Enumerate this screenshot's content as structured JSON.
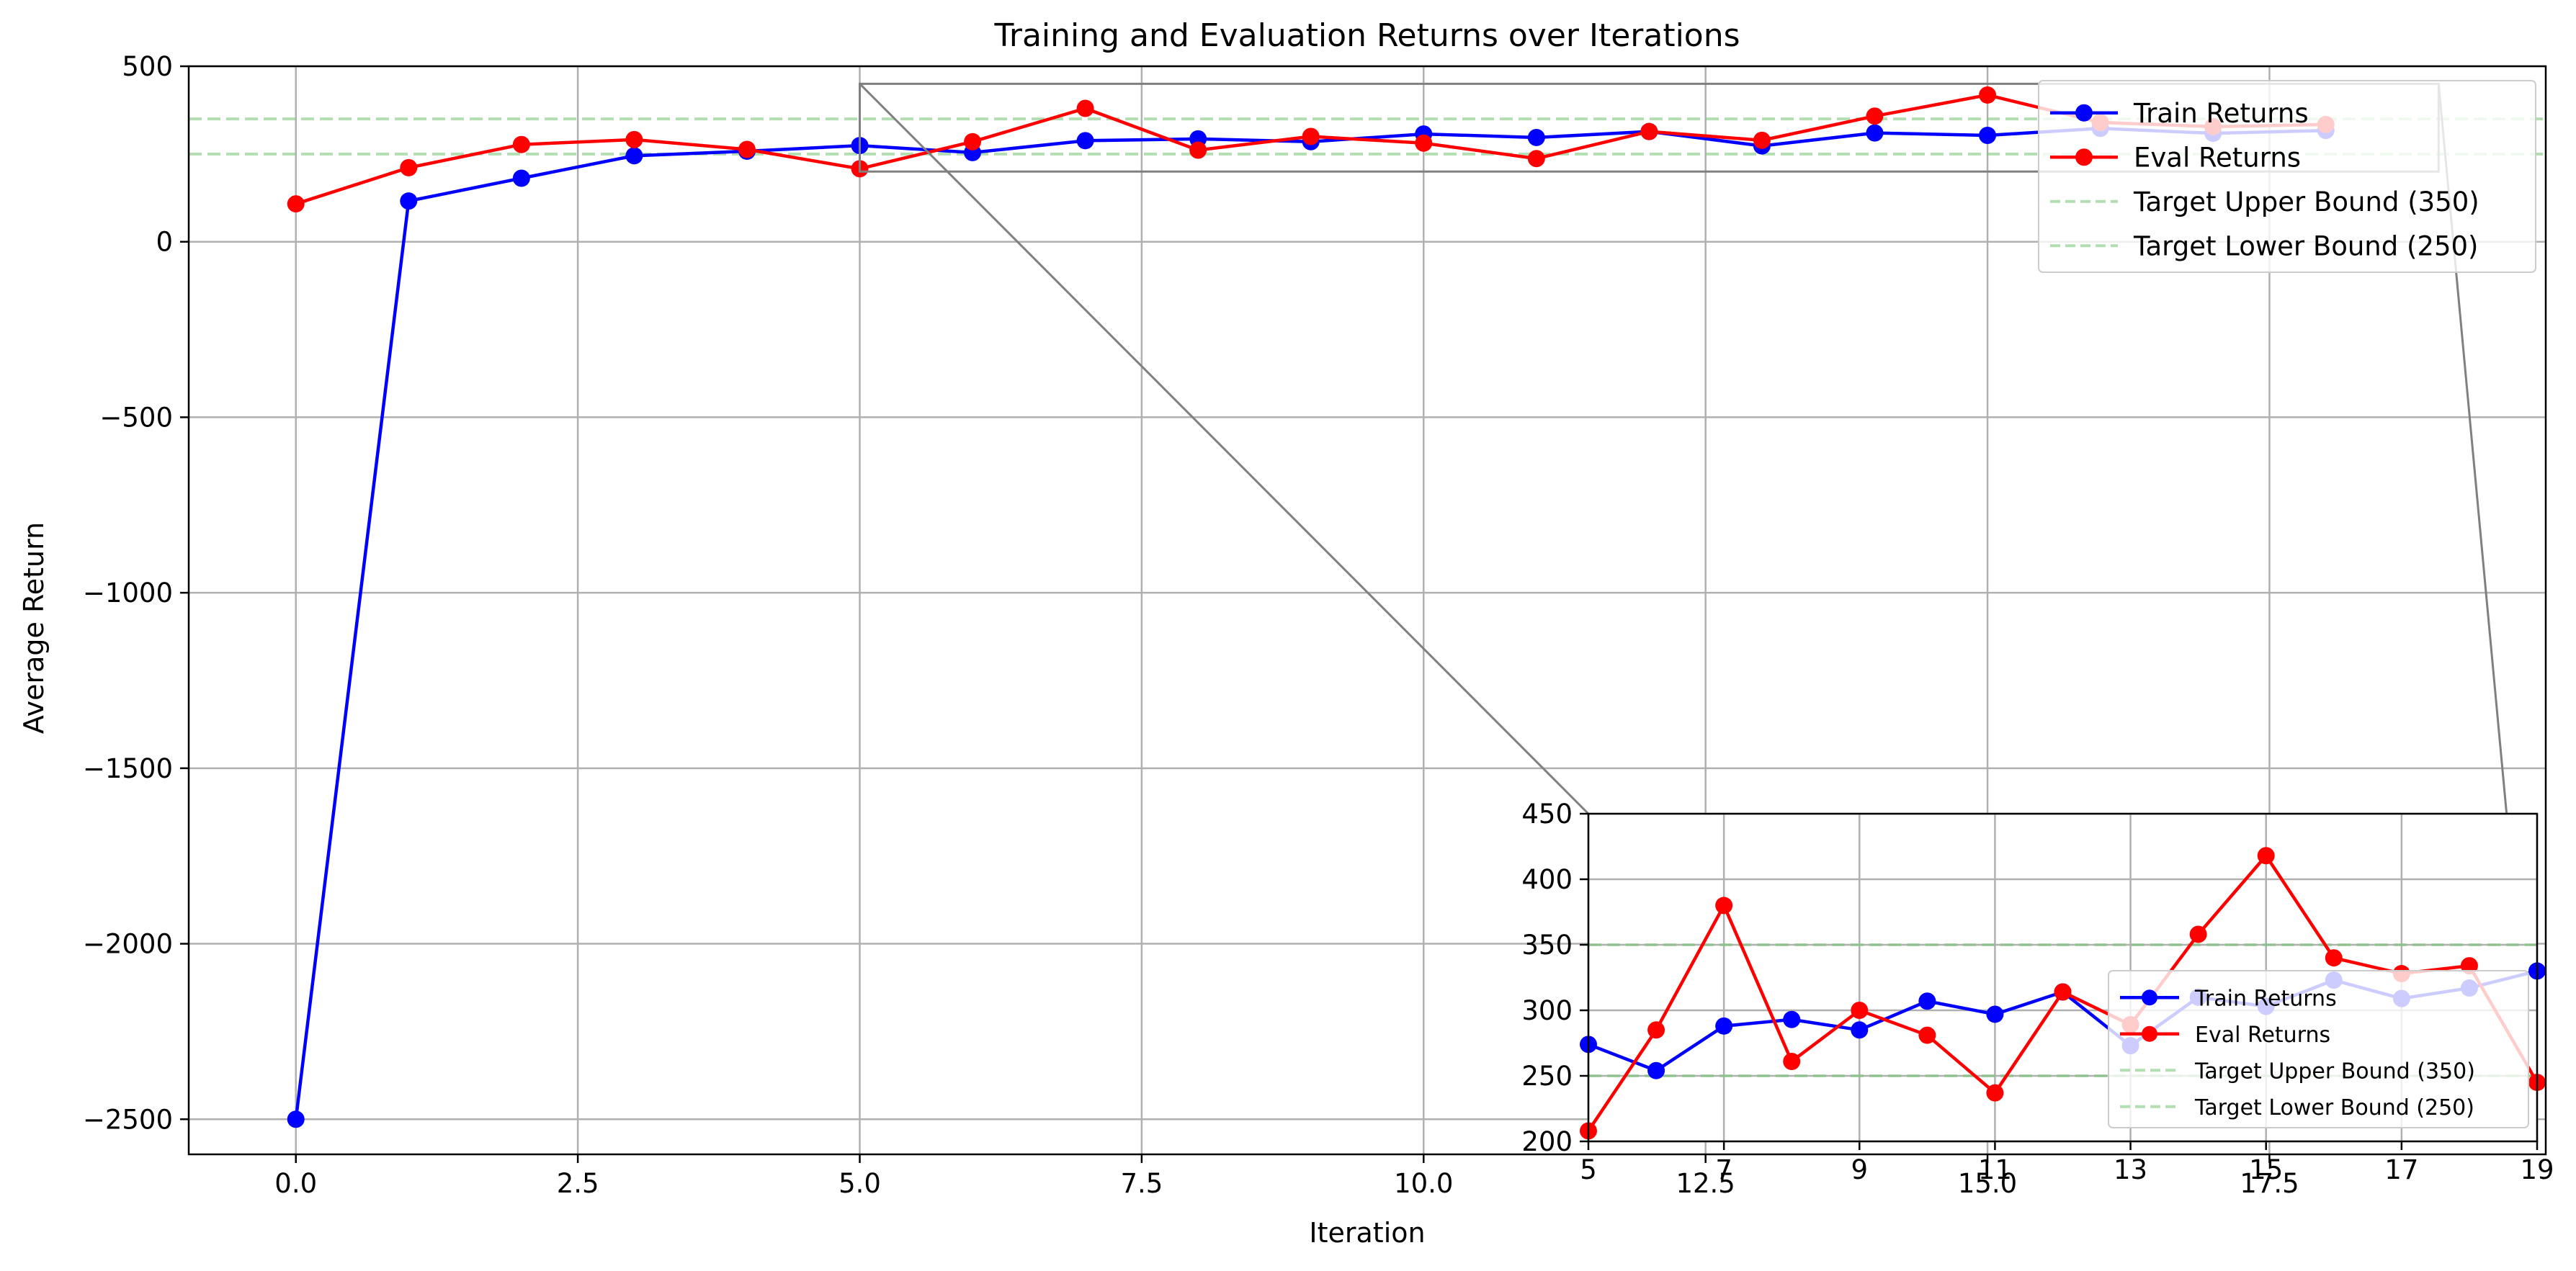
{
  "chart_data": {
    "type": "line",
    "title": "Training and Evaluation Returns over Iterations",
    "xlabel": "Iteration",
    "ylabel": "Average Return",
    "xlim": [
      -0.95,
      19.95
    ],
    "ylim": [
      -2600,
      500
    ],
    "xticks": [
      0.0,
      2.5,
      5.0,
      7.5,
      10.0,
      12.5,
      15.0,
      17.5
    ],
    "xtick_labels": [
      "0.0",
      "2.5",
      "5.0",
      "7.5",
      "10.0",
      "12.5",
      "15.0",
      "17.5"
    ],
    "yticks": [
      500,
      0,
      -500,
      -1000,
      -1500,
      -2000,
      -2500
    ],
    "ytick_labels": [
      "500",
      "0",
      "−500",
      "−1000",
      "−1500",
      "−2000",
      "−2500"
    ],
    "grid": true,
    "legend_position": "top-right",
    "x": [
      0,
      1,
      2,
      3,
      4,
      5,
      6,
      7,
      8,
      9,
      10,
      11,
      12,
      13,
      14,
      15,
      16,
      17,
      18
    ],
    "series": [
      {
        "name": "Train Returns",
        "color": "#0000ff",
        "marker": "circle",
        "values": [
          -2500,
          116,
          181,
          245,
          258,
          274,
          254,
          288,
          293,
          285,
          307,
          297,
          314,
          273,
          310,
          303,
          323,
          309,
          317
        ]
      },
      {
        "name": "Eval Returns",
        "color": "#ff0000",
        "marker": "circle",
        "values": [
          108,
          211,
          277,
          291,
          263,
          208,
          285,
          380,
          261,
          300,
          281,
          237,
          314,
          289,
          358,
          418,
          340,
          328,
          334
        ]
      }
    ],
    "reference_lines": [
      {
        "name": "Target Upper Bound (350)",
        "y": 350,
        "color": "#7fc97f",
        "style": "dashed"
      },
      {
        "name": "Target Lower Bound (250)",
        "y": 250,
        "color": "#7fc97f",
        "style": "dashed"
      }
    ],
    "inset": {
      "description_axis": "zoom",
      "xlim": [
        5,
        19
      ],
      "ylim": [
        200,
        450
      ],
      "x": [
        5,
        6,
        7,
        8,
        9,
        10,
        11,
        12,
        13,
        14,
        15,
        16,
        17,
        18,
        19
      ],
      "train_values": [
        274,
        254,
        288,
        293,
        285,
        307,
        297,
        314,
        273,
        310,
        303,
        323,
        309,
        317,
        330
      ],
      "eval_values": [
        208,
        285,
        380,
        261,
        300,
        281,
        237,
        314,
        289,
        358,
        418,
        340,
        328,
        334,
        245
      ],
      "xticks": [
        5,
        7,
        9,
        11,
        13,
        15,
        17,
        19
      ],
      "xtick_labels": [
        "5",
        "7",
        "9",
        "11",
        "13",
        "15",
        "17",
        "19"
      ],
      "yticks": [
        200,
        250,
        300,
        350,
        400,
        450
      ],
      "ytick_labels": [
        "200",
        "250",
        "300",
        "350",
        "400",
        "450"
      ],
      "legend_position": "lower-right"
    }
  }
}
